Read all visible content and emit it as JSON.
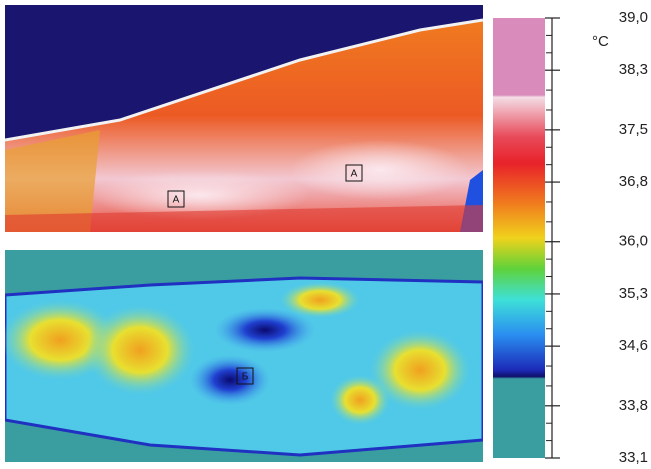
{
  "images": [
    {
      "labels": [
        "А",
        "А"
      ]
    },
    {
      "labels": [
        "Б"
      ]
    }
  ],
  "scale": {
    "unit": "°C",
    "ticks": [
      {
        "value": 39.0,
        "label": "39,0"
      },
      {
        "value": 38.3,
        "label": "38,3"
      },
      {
        "value": 37.5,
        "label": "37,5"
      },
      {
        "value": 36.8,
        "label": "36,8"
      },
      {
        "value": 36.0,
        "label": "36,0"
      },
      {
        "value": 35.3,
        "label": "35,3"
      },
      {
        "value": 34.6,
        "label": "34,6"
      },
      {
        "value": 33.8,
        "label": "33,8"
      },
      {
        "value": 33.1,
        "label": "33,1"
      }
    ]
  }
}
